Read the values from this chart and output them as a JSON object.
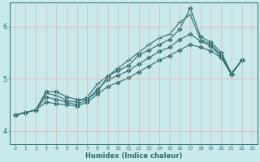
{
  "xlabel": "Humidex (Indice chaleur)",
  "ylabel": "",
  "bg_color": "#c8eaea",
  "line_color": "#2d6e6e",
  "grid_color": "#e8b0b0",
  "xlim": [
    -0.5,
    23.5
  ],
  "ylim": [
    3.75,
    6.45
  ],
  "yticks": [
    4,
    5,
    6
  ],
  "xticks": [
    0,
    1,
    2,
    3,
    4,
    5,
    6,
    7,
    8,
    9,
    10,
    11,
    12,
    13,
    14,
    15,
    16,
    17,
    18,
    19,
    20,
    21,
    22,
    23
  ],
  "series": [
    [
      4.3,
      4.35,
      4.4,
      4.75,
      4.75,
      4.65,
      4.6,
      4.6,
      4.75,
      5.05,
      5.15,
      5.25,
      5.45,
      5.55,
      5.65,
      5.75,
      5.95,
      6.35,
      5.8,
      5.7,
      5.5,
      5.1,
      5.35
    ],
    [
      4.3,
      4.35,
      4.4,
      4.72,
      4.68,
      4.58,
      4.55,
      4.65,
      4.9,
      5.05,
      5.2,
      5.35,
      5.5,
      5.65,
      5.78,
      5.85,
      6.08,
      6.22,
      5.75,
      5.65,
      5.45,
      5.1,
      5.35
    ],
    [
      4.3,
      4.35,
      4.4,
      4.65,
      4.6,
      4.55,
      4.5,
      4.6,
      4.8,
      4.98,
      5.06,
      5.15,
      5.28,
      5.4,
      5.52,
      5.6,
      5.75,
      5.85,
      5.72,
      5.62,
      5.42,
      5.08,
      5.35
    ],
    [
      4.3,
      4.35,
      4.4,
      4.55,
      4.52,
      4.5,
      4.47,
      4.55,
      4.7,
      4.85,
      4.93,
      5.01,
      5.13,
      5.24,
      5.35,
      5.44,
      5.55,
      5.65,
      5.6,
      5.53,
      5.4,
      5.08,
      5.35
    ]
  ],
  "markers": [
    "D",
    "+",
    "D",
    "D"
  ],
  "markersizes": [
    2.5,
    4.5,
    2.5,
    2.5
  ]
}
